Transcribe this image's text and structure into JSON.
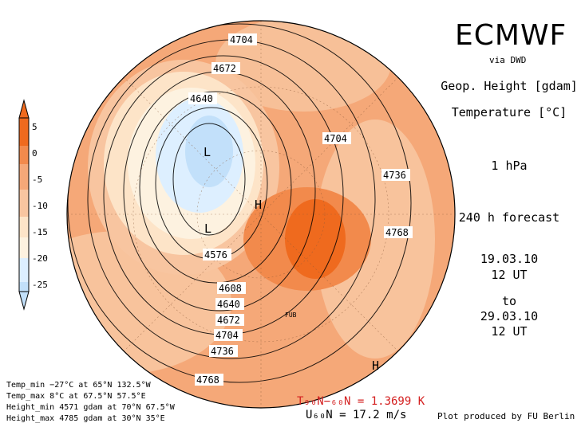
{
  "header": {
    "title": "ECMWF",
    "source": "via DWD",
    "variable_1": "Geop. Height [gdam]",
    "variable_2": "Temperature [°C]",
    "level": "1 hPa",
    "forecast": "240 h forecast",
    "init_date": "19.03.10",
    "init_time": "12 UT",
    "to_label": "to",
    "valid_date": "29.03.10",
    "valid_time": "12 UT"
  },
  "colorbar": {
    "ticks": [
      "5",
      "0",
      "-5",
      "-10",
      "-15",
      "-20",
      "-25"
    ],
    "colors": [
      "#ef6a1e",
      "#f28a4c",
      "#f5a878",
      "#f8c5a0",
      "#fde4c8",
      "#fdf2e0",
      "#ddefff",
      "#c2e0fa"
    ]
  },
  "map": {
    "contour_labels": [
      "4704",
      "4672",
      "4640",
      "4704",
      "4736",
      "4768",
      "4576",
      "4608",
      "4640",
      "4672",
      "4704",
      "4736",
      "4768"
    ],
    "pressure_markers": [
      "L",
      "L",
      "H",
      "H"
    ],
    "small_label": "FUB"
  },
  "stats": {
    "temp_min": "Temp_min −27°C at 65°N 132.5°W",
    "temp_max": "Temp_max 8°C at 67.5°N 57.5°E",
    "height_min": "Height_min 4571 gdam at 70°N 67.5°W",
    "height_max": "Height_max 4785 gdam at 30°N 35°E"
  },
  "footer": {
    "t_grad": "T₉₀N−₆₀N = 1.3699 K",
    "u_grad": "U₆₀N = 17.2 m/s",
    "credit": "Plot produced by FU Berlin"
  }
}
